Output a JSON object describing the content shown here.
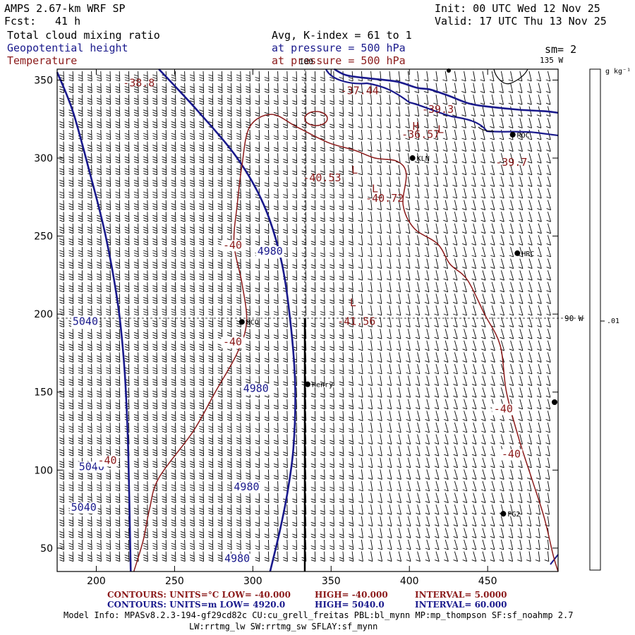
{
  "header": {
    "model": "AMPS 2.67-km WRF SP",
    "fcst_label": "Fcst:",
    "fcst_value": "41 h",
    "init": "Init: 00 UTC Wed 12 Nov 25",
    "valid": "Valid: 17 UTC Thu 13 Nov 25",
    "field1": "Total cloud mixing ratio",
    "field2": "Geopotential height",
    "field3": "Temperature",
    "avg": "Avg, K-index =  61 to   1",
    "pressure1": "at pressure =  500 hPa",
    "pressure2": "at pressure =  500 hPa",
    "sm": "sm= 2",
    "lon135": "135 W",
    "lon90": "90 W",
    "lon180": "180"
  },
  "colorbar": {
    "unit": "g kg⁻¹",
    "tick": ".01"
  },
  "footer": {
    "red_line_a": "CONTOURS:  UNITS=°C  LOW= -40.000",
    "red_line_b": "HIGH= -40.000",
    "red_line_c": "INTERVAL=   5.0000",
    "blue_line_a": "CONTOURS:  UNITS=m  LOW=  4920.0",
    "blue_line_b": "HIGH=  5040.0",
    "blue_line_c": "INTERVAL=   60.000",
    "info1": "Model Info: MPASv8.2.3-194-gf29cd82c CU:cu_grell_freitas PBL:bl_mynn MP:mp_thompson SF:sf_noahmp 2.7",
    "info2": "LW:rrtmg_lw SW:rrtmg_sw SFLAY:sf_mynn"
  },
  "chart_data": {
    "type": "map-contour",
    "xlim": [
      175,
      495
    ],
    "ylim": [
      35,
      357
    ],
    "xticks": [
      200,
      250,
      300,
      350,
      400,
      450
    ],
    "yticks": [
      50,
      100,
      150,
      200,
      250,
      300,
      350
    ],
    "height_contours": [
      {
        "label": "5040",
        "points": [
          [
            175,
            355
          ],
          [
            185,
            330
          ],
          [
            196,
            290
          ],
          [
            206,
            250
          ],
          [
            214,
            205
          ],
          [
            218,
            165
          ],
          [
            220,
            125
          ],
          [
            221,
            85
          ],
          [
            222,
            35
          ]
        ],
        "label_at": [
          [
            193,
            193
          ],
          [
            197,
            100
          ],
          [
            192,
            74
          ]
        ]
      },
      {
        "label": "4980",
        "points": [
          [
            240,
            357
          ],
          [
            265,
            330
          ],
          [
            290,
            300
          ],
          [
            307,
            270
          ],
          [
            318,
            235
          ],
          [
            324,
            195
          ],
          [
            327,
            155
          ],
          [
            326,
            115
          ],
          [
            322,
            85
          ],
          [
            317,
            60
          ],
          [
            311,
            35
          ]
        ],
        "label_at": [
          [
            311,
            238
          ],
          [
            302,
            150
          ],
          [
            296,
            87
          ],
          [
            290,
            41
          ]
        ]
      },
      {
        "label": "4980",
        "points": [
          [
            352,
            357
          ],
          [
            360,
            353
          ],
          [
            375,
            351
          ],
          [
            392,
            349
          ],
          [
            405,
            345
          ],
          [
            413,
            344
          ],
          [
            425,
            340
          ],
          [
            438,
            335
          ],
          [
            450,
            333
          ],
          [
            470,
            331
          ],
          [
            487,
            330
          ],
          [
            495,
            329
          ]
        ],
        "label_at": []
      }
    ],
    "temperature_contours": [
      {
        "label": "-40",
        "points": [
          [
            224,
            35
          ],
          [
            230,
            55
          ],
          [
            234,
            75
          ],
          [
            240,
            95
          ],
          [
            262,
            125
          ],
          [
            276,
            150
          ],
          [
            290,
            175
          ],
          [
            296,
            195
          ],
          [
            293,
            220
          ],
          [
            288,
            245
          ],
          [
            290,
            270
          ],
          [
            293,
            295
          ],
          [
            298,
            320
          ],
          [
            312,
            328
          ],
          [
            328,
            320
          ],
          [
            348,
            310
          ],
          [
            365,
            305
          ],
          [
            378,
            300
          ],
          [
            392,
            298
          ],
          [
            398,
            290
          ],
          [
            396,
            270
          ],
          [
            403,
            255
          ],
          [
            418,
            245
          ],
          [
            426,
            232
          ],
          [
            437,
            222
          ],
          [
            448,
            200
          ],
          [
            458,
            180
          ],
          [
            462,
            150
          ],
          [
            470,
            120
          ],
          [
            478,
            95
          ],
          [
            486,
            70
          ],
          [
            492,
            45
          ],
          [
            495,
            35
          ]
        ],
        "label_at": [
          [
            207,
            104
          ],
          [
            287,
            180
          ],
          [
            287,
            242
          ],
          [
            460,
            137
          ],
          [
            465,
            108
          ]
        ]
      }
    ],
    "extrema_labels": [
      {
        "text": "-38.8",
        "x": 217,
        "y": 346
      },
      {
        "text": "-37.44",
        "x": 356,
        "y": 341
      },
      {
        "text": "-39.3",
        "x": 408,
        "y": 329
      },
      {
        "text": "H",
        "x": 402,
        "y": 318
      },
      {
        "text": "-36.57",
        "x": 395,
        "y": 313
      },
      {
        "text": "L",
        "x": 418,
        "y": 316
      },
      {
        "text": "-39.7",
        "x": 455,
        "y": 295
      },
      {
        "text": "L",
        "x": 363,
        "y": 290
      },
      {
        "text": "-40.53",
        "x": 332,
        "y": 285
      },
      {
        "text": "L",
        "x": 376,
        "y": 278
      },
      {
        "text": "-40.72",
        "x": 372,
        "y": 272
      },
      {
        "text": "L",
        "x": 362,
        "y": 205
      },
      {
        "text": "-41.56",
        "x": 354,
        "y": 193
      }
    ],
    "stations": [
      {
        "name": "KLN",
        "x": 402,
        "y": 300
      },
      {
        "name": "ROC",
        "x": 466,
        "y": 315
      },
      {
        "name": "HRC",
        "x": 469,
        "y": 239
      },
      {
        "name": "RCO",
        "x": 293,
        "y": 195
      },
      {
        "name": "Henry",
        "x": 335,
        "y": 155
      },
      {
        "name": "PG2",
        "x": 460,
        "y": 72
      }
    ]
  }
}
